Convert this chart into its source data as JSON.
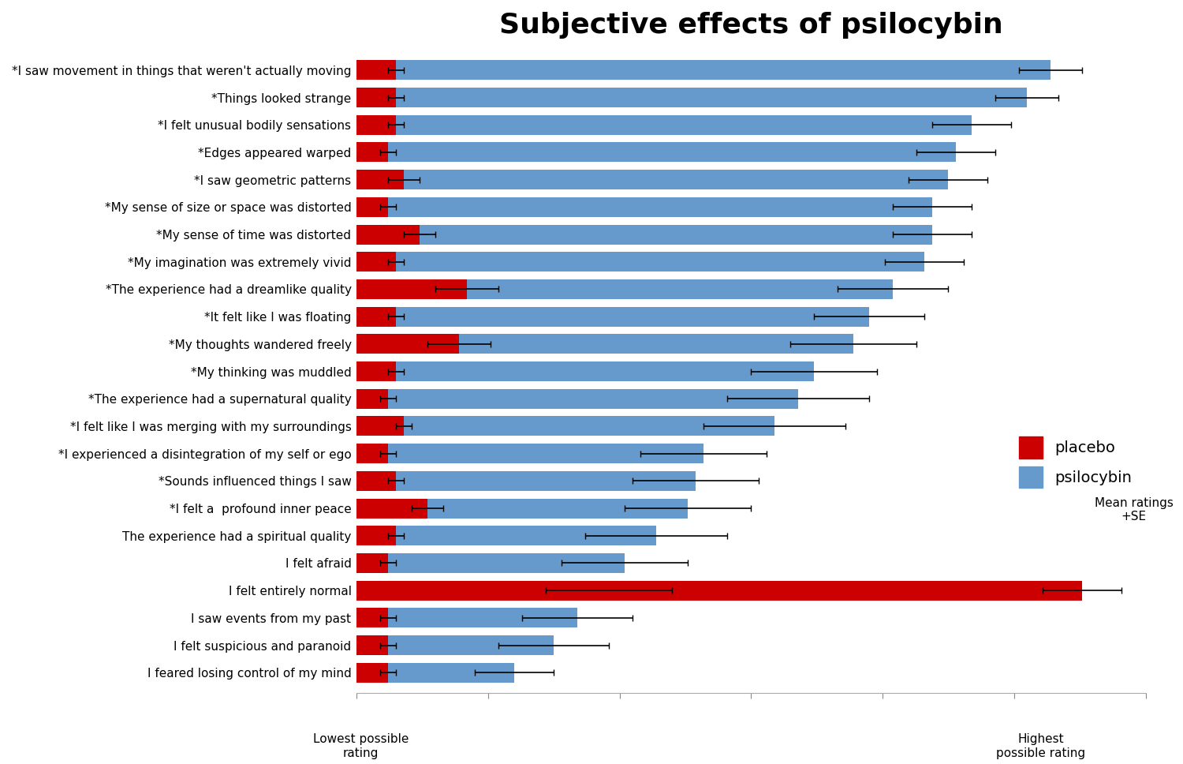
{
  "title": "Subjective effects of psilocybin",
  "title_fontsize": 26,
  "title_fontweight": "bold",
  "categories": [
    "*I saw movement in things that weren't actually moving",
    "*Things looked strange",
    "*I felt unusual bodily sensations",
    "*Edges appeared warped",
    "*I saw geometric patterns",
    "*My sense of size or space was distorted",
    "*My sense of time was distorted",
    "*My imagination was extremely vivid",
    "*The experience had a dreamlike quality",
    "*It felt like I was floating",
    "*My thoughts wandered freely",
    "*My thinking was muddled",
    "*The experience had a supernatural quality",
    "*I felt like I was merging with my surroundings",
    "*I experienced a disintegration of my self or ego",
    "*Sounds influenced things I saw",
    "*I felt a  profound inner peace",
    "The experience had a spiritual quality",
    "I felt afraid",
    "I felt entirely normal",
    "I saw events from my past",
    "I felt suspicious and paranoid",
    "I feared losing control of my mind"
  ],
  "psilocybin_values": [
    88,
    85,
    78,
    76,
    75,
    73,
    73,
    72,
    68,
    65,
    63,
    58,
    56,
    53,
    44,
    43,
    42,
    38,
    34,
    32,
    28,
    25,
    20
  ],
  "placebo_values": [
    5,
    5,
    5,
    4,
    6,
    4,
    8,
    5,
    14,
    5,
    13,
    5,
    4,
    6,
    4,
    5,
    9,
    5,
    4,
    92,
    4,
    4,
    4
  ],
  "psilocybin_se": [
    4,
    4,
    5,
    5,
    5,
    5,
    5,
    5,
    7,
    7,
    8,
    8,
    9,
    9,
    8,
    8,
    8,
    9,
    8,
    8,
    7,
    7,
    5
  ],
  "placebo_se": [
    1,
    1,
    1,
    1,
    2,
    1,
    2,
    1,
    4,
    1,
    4,
    1,
    1,
    1,
    1,
    1,
    2,
    1,
    1,
    5,
    1,
    1,
    1
  ],
  "psilocybin_color": "#6699CC",
  "placebo_color": "#CC0000",
  "bar_height": 0.72,
  "xlim": [
    0,
    100
  ],
  "xlabel_left": "Lowest possible\nrating",
  "xlabel_right": "Highest\npossible rating",
  "legend_placebo": "placebo",
  "legend_psilocybin": "psilocybin",
  "legend_note": "Mean ratings\n+SE",
  "background_color": "#ffffff"
}
